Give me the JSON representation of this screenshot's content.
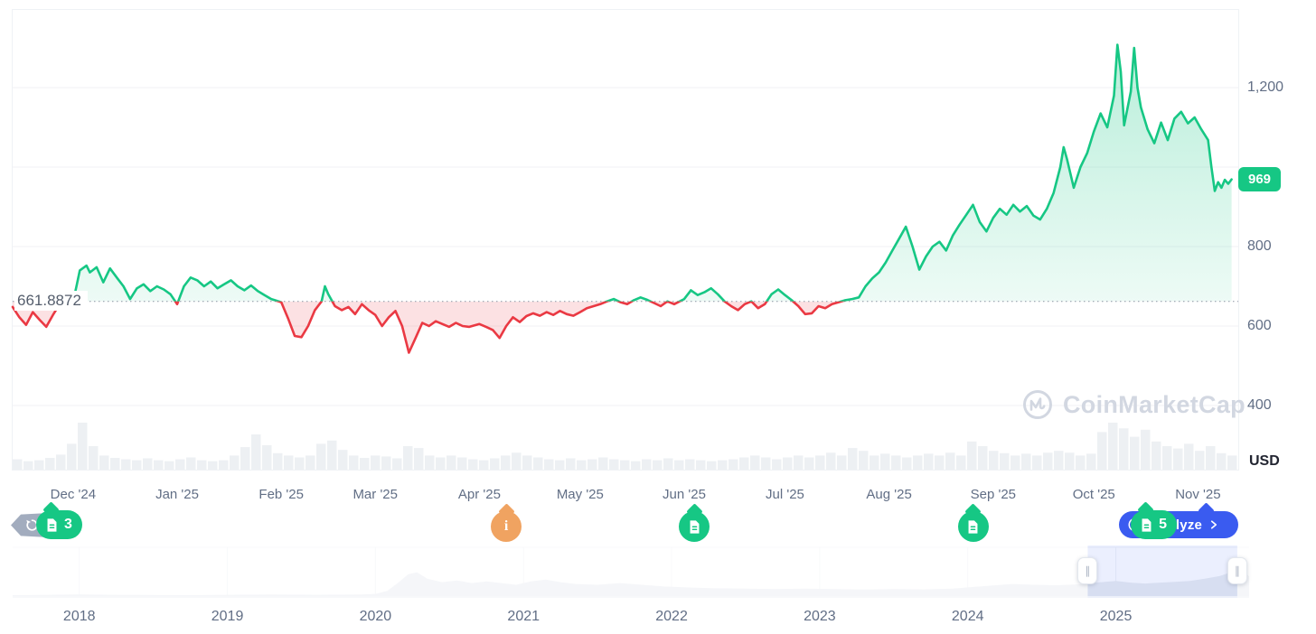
{
  "chart": {
    "baseline_label": "661.8872",
    "price_badge": "969",
    "unit_label": "USD",
    "y_axis": [
      {
        "value": 1200,
        "label": "1,200"
      },
      {
        "value": 1000,
        "label": ""
      },
      {
        "value": 800,
        "label": "800"
      },
      {
        "value": 600,
        "label": "600"
      },
      {
        "value": 400,
        "label": "400"
      }
    ],
    "x_axis": [
      {
        "label": "Dec '24",
        "date": "2024-12-01"
      },
      {
        "label": "Jan '25",
        "date": "2025-01-01"
      },
      {
        "label": "Feb '25",
        "date": "2025-02-01"
      },
      {
        "label": "Mar '25",
        "date": "2025-03-01"
      },
      {
        "label": "Apr '25",
        "date": "2025-04-01"
      },
      {
        "label": "May '25",
        "date": "2025-05-01"
      },
      {
        "label": "Jun '25",
        "date": "2025-06-01"
      },
      {
        "label": "Jul '25",
        "date": "2025-07-01"
      },
      {
        "label": "Aug '25",
        "date": "2025-08-01"
      },
      {
        "label": "Sep '25",
        "date": "2025-09-01"
      },
      {
        "label": "Oct '25",
        "date": "2025-10-01"
      },
      {
        "label": "Nov '25",
        "date": "2025-11-01"
      }
    ]
  },
  "chart_data": {
    "type": "line",
    "title": "",
    "unit": "USD",
    "baseline": 661.8872,
    "current_price": 969,
    "ylim": [
      350,
      1330
    ],
    "grid": true,
    "domain": [
      "2024-11-13",
      "2025-11-13"
    ],
    "points": [
      [
        "2024-11-13",
        648
      ],
      [
        "2024-11-15",
        622
      ],
      [
        "2024-11-17",
        603
      ],
      [
        "2024-11-19",
        635
      ],
      [
        "2024-11-21",
        616
      ],
      [
        "2024-11-23",
        598
      ],
      [
        "2024-11-25",
        628
      ],
      [
        "2024-11-27",
        655
      ],
      [
        "2024-11-29",
        650
      ],
      [
        "2024-12-01",
        662
      ],
      [
        "2024-12-02",
        700
      ],
      [
        "2024-12-03",
        740
      ],
      [
        "2024-12-05",
        752
      ],
      [
        "2024-12-06",
        735
      ],
      [
        "2024-12-08",
        748
      ],
      [
        "2024-12-10",
        710
      ],
      [
        "2024-12-12",
        745
      ],
      [
        "2024-12-14",
        722
      ],
      [
        "2024-12-16",
        700
      ],
      [
        "2024-12-18",
        668
      ],
      [
        "2024-12-20",
        695
      ],
      [
        "2024-12-22",
        705
      ],
      [
        "2024-12-24",
        688
      ],
      [
        "2024-12-26",
        700
      ],
      [
        "2024-12-28",
        692
      ],
      [
        "2024-12-30",
        680
      ],
      [
        "2025-01-01",
        655
      ],
      [
        "2025-01-03",
        700
      ],
      [
        "2025-01-05",
        722
      ],
      [
        "2025-01-07",
        715
      ],
      [
        "2025-01-09",
        700
      ],
      [
        "2025-01-11",
        712
      ],
      [
        "2025-01-13",
        695
      ],
      [
        "2025-01-15",
        705
      ],
      [
        "2025-01-17",
        715
      ],
      [
        "2025-01-19",
        700
      ],
      [
        "2025-01-21",
        690
      ],
      [
        "2025-01-23",
        702
      ],
      [
        "2025-01-25",
        688
      ],
      [
        "2025-01-27",
        678
      ],
      [
        "2025-01-29",
        668
      ],
      [
        "2025-02-01",
        660
      ],
      [
        "2025-02-03",
        620
      ],
      [
        "2025-02-05",
        575
      ],
      [
        "2025-02-07",
        572
      ],
      [
        "2025-02-09",
        600
      ],
      [
        "2025-02-11",
        640
      ],
      [
        "2025-02-13",
        662
      ],
      [
        "2025-02-14",
        700
      ],
      [
        "2025-02-15",
        680
      ],
      [
        "2025-02-17",
        650
      ],
      [
        "2025-02-19",
        640
      ],
      [
        "2025-02-21",
        648
      ],
      [
        "2025-02-23",
        630
      ],
      [
        "2025-02-25",
        655
      ],
      [
        "2025-02-27",
        640
      ],
      [
        "2025-03-01",
        628
      ],
      [
        "2025-03-03",
        600
      ],
      [
        "2025-03-05",
        622
      ],
      [
        "2025-03-07",
        638
      ],
      [
        "2025-03-09",
        600
      ],
      [
        "2025-03-11",
        533
      ],
      [
        "2025-03-13",
        570
      ],
      [
        "2025-03-15",
        608
      ],
      [
        "2025-03-17",
        600
      ],
      [
        "2025-03-19",
        612
      ],
      [
        "2025-03-21",
        605
      ],
      [
        "2025-03-23",
        598
      ],
      [
        "2025-03-25",
        608
      ],
      [
        "2025-03-27",
        600
      ],
      [
        "2025-03-29",
        598
      ],
      [
        "2025-04-01",
        605
      ],
      [
        "2025-04-03",
        598
      ],
      [
        "2025-04-05",
        590
      ],
      [
        "2025-04-07",
        570
      ],
      [
        "2025-04-09",
        600
      ],
      [
        "2025-04-11",
        622
      ],
      [
        "2025-04-13",
        610
      ],
      [
        "2025-04-15",
        625
      ],
      [
        "2025-04-17",
        632
      ],
      [
        "2025-04-19",
        626
      ],
      [
        "2025-04-21",
        635
      ],
      [
        "2025-04-23",
        628
      ],
      [
        "2025-04-25",
        638
      ],
      [
        "2025-04-27",
        630
      ],
      [
        "2025-04-29",
        626
      ],
      [
        "2025-05-01",
        635
      ],
      [
        "2025-05-03",
        645
      ],
      [
        "2025-05-05",
        650
      ],
      [
        "2025-05-07",
        655
      ],
      [
        "2025-05-09",
        662
      ],
      [
        "2025-05-11",
        668
      ],
      [
        "2025-05-13",
        660
      ],
      [
        "2025-05-15",
        655
      ],
      [
        "2025-05-17",
        665
      ],
      [
        "2025-05-19",
        672
      ],
      [
        "2025-05-21",
        666
      ],
      [
        "2025-05-23",
        658
      ],
      [
        "2025-05-25",
        650
      ],
      [
        "2025-05-27",
        662
      ],
      [
        "2025-05-29",
        655
      ],
      [
        "2025-06-01",
        668
      ],
      [
        "2025-06-03",
        690
      ],
      [
        "2025-06-05",
        678
      ],
      [
        "2025-06-07",
        685
      ],
      [
        "2025-06-09",
        695
      ],
      [
        "2025-06-11",
        680
      ],
      [
        "2025-06-13",
        662
      ],
      [
        "2025-06-15",
        650
      ],
      [
        "2025-06-17",
        640
      ],
      [
        "2025-06-19",
        655
      ],
      [
        "2025-06-21",
        662
      ],
      [
        "2025-06-23",
        645
      ],
      [
        "2025-06-25",
        655
      ],
      [
        "2025-06-27",
        680
      ],
      [
        "2025-06-29",
        692
      ],
      [
        "2025-07-01",
        678
      ],
      [
        "2025-07-03",
        665
      ],
      [
        "2025-07-05",
        650
      ],
      [
        "2025-07-07",
        630
      ],
      [
        "2025-07-09",
        632
      ],
      [
        "2025-07-11",
        650
      ],
      [
        "2025-07-13",
        645
      ],
      [
        "2025-07-15",
        655
      ],
      [
        "2025-07-17",
        660
      ],
      [
        "2025-07-19",
        665
      ],
      [
        "2025-07-21",
        668
      ],
      [
        "2025-07-23",
        672
      ],
      [
        "2025-07-25",
        700
      ],
      [
        "2025-07-27",
        720
      ],
      [
        "2025-07-29",
        735
      ],
      [
        "2025-07-31",
        760
      ],
      [
        "2025-08-02",
        790
      ],
      [
        "2025-08-04",
        820
      ],
      [
        "2025-08-06",
        850
      ],
      [
        "2025-08-08",
        800
      ],
      [
        "2025-08-10",
        742
      ],
      [
        "2025-08-12",
        775
      ],
      [
        "2025-08-14",
        800
      ],
      [
        "2025-08-16",
        812
      ],
      [
        "2025-08-18",
        790
      ],
      [
        "2025-08-20",
        828
      ],
      [
        "2025-08-22",
        855
      ],
      [
        "2025-08-24",
        880
      ],
      [
        "2025-08-26",
        905
      ],
      [
        "2025-08-28",
        862
      ],
      [
        "2025-08-30",
        838
      ],
      [
        "2025-09-01",
        872
      ],
      [
        "2025-09-03",
        895
      ],
      [
        "2025-09-05",
        880
      ],
      [
        "2025-09-07",
        905
      ],
      [
        "2025-09-09",
        888
      ],
      [
        "2025-09-11",
        902
      ],
      [
        "2025-09-13",
        878
      ],
      [
        "2025-09-15",
        868
      ],
      [
        "2025-09-17",
        895
      ],
      [
        "2025-09-19",
        935
      ],
      [
        "2025-09-21",
        1000
      ],
      [
        "2025-09-22",
        1050
      ],
      [
        "2025-09-23",
        1020
      ],
      [
        "2025-09-25",
        948
      ],
      [
        "2025-09-27",
        1000
      ],
      [
        "2025-09-29",
        1035
      ],
      [
        "2025-10-01",
        1090
      ],
      [
        "2025-10-03",
        1135
      ],
      [
        "2025-10-05",
        1100
      ],
      [
        "2025-10-07",
        1180
      ],
      [
        "2025-10-08",
        1308
      ],
      [
        "2025-10-09",
        1240
      ],
      [
        "2025-10-10",
        1105
      ],
      [
        "2025-10-12",
        1190
      ],
      [
        "2025-10-13",
        1300
      ],
      [
        "2025-10-14",
        1200
      ],
      [
        "2025-10-15",
        1150
      ],
      [
        "2025-10-17",
        1095
      ],
      [
        "2025-10-19",
        1060
      ],
      [
        "2025-10-21",
        1112
      ],
      [
        "2025-10-23",
        1068
      ],
      [
        "2025-10-25",
        1122
      ],
      [
        "2025-10-27",
        1139
      ],
      [
        "2025-10-29",
        1110
      ],
      [
        "2025-10-31",
        1125
      ],
      [
        "2025-11-02",
        1095
      ],
      [
        "2025-11-04",
        1068
      ],
      [
        "2025-11-05",
        1000
      ],
      [
        "2025-11-06",
        940
      ],
      [
        "2025-11-07",
        962
      ],
      [
        "2025-11-08",
        948
      ],
      [
        "2025-11-09",
        968
      ],
      [
        "2025-11-10",
        958
      ],
      [
        "2025-11-11",
        969
      ]
    ],
    "volume": [
      0.22,
      0.18,
      0.2,
      0.25,
      0.32,
      0.55,
      1.0,
      0.5,
      0.3,
      0.25,
      0.22,
      0.2,
      0.24,
      0.2,
      0.18,
      0.22,
      0.26,
      0.2,
      0.18,
      0.2,
      0.3,
      0.48,
      0.75,
      0.52,
      0.35,
      0.3,
      0.26,
      0.3,
      0.55,
      0.62,
      0.42,
      0.3,
      0.25,
      0.3,
      0.28,
      0.24,
      0.5,
      0.46,
      0.3,
      0.26,
      0.3,
      0.26,
      0.22,
      0.2,
      0.24,
      0.3,
      0.36,
      0.3,
      0.26,
      0.22,
      0.2,
      0.24,
      0.2,
      0.22,
      0.26,
      0.22,
      0.2,
      0.18,
      0.22,
      0.2,
      0.24,
      0.2,
      0.22,
      0.2,
      0.18,
      0.2,
      0.22,
      0.26,
      0.3,
      0.26,
      0.22,
      0.26,
      0.3,
      0.26,
      0.3,
      0.36,
      0.3,
      0.46,
      0.4,
      0.3,
      0.34,
      0.3,
      0.26,
      0.3,
      0.34,
      0.3,
      0.36,
      0.3,
      0.6,
      0.5,
      0.4,
      0.35,
      0.3,
      0.34,
      0.3,
      0.36,
      0.4,
      0.36,
      0.3,
      0.34,
      0.8,
      1.0,
      0.88,
      0.7,
      0.85,
      0.6,
      0.5,
      0.45,
      0.55,
      0.4,
      0.5,
      0.35,
      0.3
    ],
    "navigator": {
      "domain": [
        2017.55,
        2025.9
      ],
      "selection": [
        2024.81,
        2025.82
      ],
      "handle_glyph": "∥",
      "years": [
        "2018",
        "2019",
        "2020",
        "2021",
        "2022",
        "2023",
        "2024",
        "2025"
      ],
      "points": [
        [
          2017.55,
          0.02
        ],
        [
          2017.8,
          0.03
        ],
        [
          2018.0,
          0.04
        ],
        [
          2018.2,
          0.03
        ],
        [
          2018.45,
          0.025
        ],
        [
          2018.7,
          0.02
        ],
        [
          2019.0,
          0.03
        ],
        [
          2019.3,
          0.035
        ],
        [
          2019.6,
          0.03
        ],
        [
          2019.9,
          0.035
        ],
        [
          2020.0,
          0.05
        ],
        [
          2020.08,
          0.12
        ],
        [
          2020.15,
          0.3
        ],
        [
          2020.22,
          0.5
        ],
        [
          2020.28,
          0.55
        ],
        [
          2020.35,
          0.4
        ],
        [
          2020.45,
          0.32
        ],
        [
          2020.55,
          0.36
        ],
        [
          2020.65,
          0.3
        ],
        [
          2020.75,
          0.34
        ],
        [
          2020.85,
          0.3
        ],
        [
          2020.95,
          0.26
        ],
        [
          2021.05,
          0.34
        ],
        [
          2021.15,
          0.38
        ],
        [
          2021.25,
          0.32
        ],
        [
          2021.35,
          0.28
        ],
        [
          2021.5,
          0.26
        ],
        [
          2021.65,
          0.3
        ],
        [
          2021.8,
          0.26
        ],
        [
          2021.95,
          0.22
        ],
        [
          2022.1,
          0.2
        ],
        [
          2022.3,
          0.18
        ],
        [
          2022.5,
          0.17
        ],
        [
          2022.7,
          0.16
        ],
        [
          2022.9,
          0.17
        ],
        [
          2023.1,
          0.16
        ],
        [
          2023.3,
          0.15
        ],
        [
          2023.5,
          0.16
        ],
        [
          2023.7,
          0.155
        ],
        [
          2023.9,
          0.17
        ],
        [
          2024.0,
          0.2
        ],
        [
          2024.15,
          0.24
        ],
        [
          2024.3,
          0.28
        ],
        [
          2024.45,
          0.26
        ],
        [
          2024.6,
          0.25
        ],
        [
          2024.75,
          0.27
        ],
        [
          2024.9,
          0.32
        ],
        [
          2025.0,
          0.35
        ],
        [
          2025.1,
          0.31
        ],
        [
          2025.2,
          0.29
        ],
        [
          2025.3,
          0.31
        ],
        [
          2025.4,
          0.33
        ],
        [
          2025.5,
          0.35
        ],
        [
          2025.6,
          0.4
        ],
        [
          2025.7,
          0.46
        ],
        [
          2025.78,
          0.55
        ],
        [
          2025.83,
          0.78
        ],
        [
          2025.86,
          0.6
        ],
        [
          2025.9,
          0.45
        ]
      ]
    }
  },
  "events": [
    {
      "type": "gray-flag",
      "icon": "history-icon",
      "date": "2024-11-20",
      "count": ""
    },
    {
      "type": "green-count",
      "icon": "document-icon",
      "date": "2024-11-27",
      "count": "3"
    },
    {
      "type": "orange-info",
      "icon": "info-icon",
      "date": "2025-04-09",
      "count": ""
    },
    {
      "type": "green-doc",
      "icon": "document-icon",
      "date": "2025-06-04",
      "count": ""
    },
    {
      "type": "green-doc",
      "icon": "document-icon",
      "date": "2025-08-26",
      "count": ""
    },
    {
      "type": "green-count",
      "icon": "document-icon",
      "date": "2025-10-19",
      "count": "5"
    }
  ],
  "analyze": {
    "label": "Analyze"
  },
  "watermark": {
    "text": "CoinMarketCap"
  },
  "colors": {
    "up": "#16c784",
    "down": "#ea3943",
    "up_fill_top": "rgba(22,199,132,0.30)",
    "up_fill_bottom": "rgba(22,199,132,0.03)",
    "down_fill": "rgba(234,57,67,0.15)",
    "grid": "#f0f2f5",
    "border": "#eff2f5",
    "volume_bar": "#edf0f3",
    "axis_text": "#616e85",
    "baseline_dots": "#8b94a3",
    "accent_blue": "#3a5bf0",
    "accent_orange": "#f0a361",
    "marker_gray": "#a2acbe",
    "nav_area": "#e9ecf1",
    "nav_selection": "rgba(94,126,243,0.12)",
    "watermark_gray": "#d2d7e1"
  }
}
